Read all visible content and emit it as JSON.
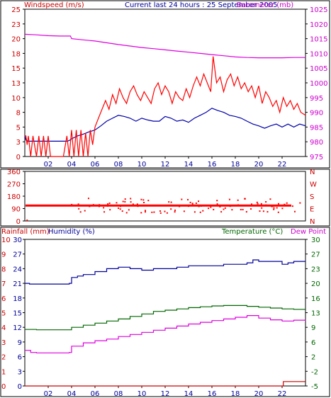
{
  "header": {
    "windspeed_label": "Windspeed (m/s)",
    "title": "Current last 24 hours : 25 September 2005",
    "barometer_label": "Barometer (mb)"
  },
  "bottom_labels": {
    "rainfall": "Rainfall (mm)",
    "humidity": "Humidity (%)",
    "temperature": "Temperature (°C)",
    "dewpoint": "Dew Point"
  },
  "colors": {
    "wind_gust": "#ff0000",
    "wind_avg": "#0000aa",
    "barometer": "#dd00dd",
    "direction": "#ff0000",
    "humidity": "#000099",
    "temperature": "#006600",
    "dewpoint": "#dd00dd",
    "rain": "#cc0000",
    "axis_text_left": "#000099",
    "axis_text_red": "#cc0000",
    "axis_text_green": "#006600",
    "axis_text_magenta": "#cc00cc"
  },
  "chart_data": [
    {
      "type": "line",
      "name": "wind-barometer",
      "x_ticks": [
        "02",
        "04",
        "06",
        "08",
        "10",
        "12",
        "14",
        "16",
        "18",
        "20",
        "22"
      ],
      "x_range_hours": [
        0,
        24
      ],
      "y_left_ticks": [
        "25",
        "23",
        "20",
        "18",
        "15",
        "13",
        "10",
        "8",
        "5",
        "3",
        "0"
      ],
      "y_left_range": [
        0,
        25
      ],
      "y_right_ticks": [
        "1025",
        "1020",
        "1015",
        "1010",
        "1005",
        "1000",
        "995",
        "990",
        "985",
        "980",
        "975"
      ],
      "y_right_range": [
        975,
        1025
      ],
      "series": [
        {
          "axis": "left",
          "x": [
            0,
            0.1,
            0.25,
            0.4,
            1.0,
            1.6,
            2.2,
            2.8,
            3.3,
            3.6,
            3.8,
            4.0,
            4.5,
            5.0,
            5.5,
            6.0,
            6.5,
            7.0,
            7.5,
            8.0,
            8.5,
            9.0,
            9.5,
            10.0,
            10.5,
            11.0,
            11.5,
            12.0,
            12.5,
            13.0,
            13.5,
            14.0,
            14.5,
            15.0,
            15.5,
            16.0,
            16.5,
            17.0,
            17.5,
            18.0,
            18.5,
            19.0,
            19.5,
            20.0,
            20.5,
            21.0,
            21.5,
            22.0,
            22.5,
            23.0,
            23.5,
            24.0
          ],
          "values": [
            3.5,
            2.8,
            2.6,
            2.6,
            2.6,
            2.6,
            2.6,
            2.6,
            2.6,
            2.6,
            2.7,
            3.0,
            3.5,
            3.8,
            4.2,
            4.5,
            5.2,
            6.0,
            6.5,
            7.0,
            6.8,
            6.5,
            6.0,
            6.5,
            6.2,
            6.0,
            6.0,
            6.8,
            6.5,
            6.0,
            6.2,
            5.8,
            6.5,
            7.0,
            7.5,
            8.2,
            7.8,
            7.5,
            7.0,
            6.8,
            6.5,
            6.0,
            5.5,
            5.2,
            4.8,
            5.2,
            5.5,
            5.0,
            5.5,
            5.0,
            5.5,
            5.2
          ]
        },
        {
          "axis": "left",
          "x": [
            0,
            0.1,
            0.2,
            0.3,
            0.5,
            0.7,
            1.0,
            1.2,
            1.4,
            1.6,
            1.8,
            2.0,
            2.2,
            2.6,
            3.0,
            3.3,
            3.6,
            3.8,
            4.0,
            4.2,
            4.4,
            4.6,
            4.8,
            5.0,
            5.2,
            5.4,
            5.6,
            5.8,
            6.0,
            6.3,
            6.6,
            6.9,
            7.2,
            7.5,
            7.8,
            8.1,
            8.4,
            8.7,
            9.0,
            9.3,
            9.6,
            9.9,
            10.2,
            10.5,
            10.8,
            11.1,
            11.4,
            11.7,
            12.0,
            12.3,
            12.6,
            12.9,
            13.2,
            13.5,
            13.8,
            14.1,
            14.4,
            14.7,
            15.0,
            15.3,
            15.6,
            15.9,
            16.1,
            16.4,
            16.7,
            17.0,
            17.3,
            17.6,
            17.9,
            18.2,
            18.5,
            18.8,
            19.1,
            19.4,
            19.7,
            20.0,
            20.3,
            20.6,
            20.9,
            21.2,
            21.5,
            21.8,
            22.1,
            22.4,
            22.7,
            23.0,
            23.3,
            23.6,
            24.0
          ],
          "values": [
            3.5,
            3.5,
            2.0,
            3.5,
            0,
            3.5,
            0,
            3.5,
            0,
            3.5,
            0,
            3.5,
            0,
            0,
            0,
            0,
            3.5,
            0,
            4.5,
            0,
            4.5,
            0,
            4.5,
            0,
            4.0,
            0,
            4.5,
            2.0,
            5.0,
            6.5,
            8.0,
            9.5,
            8.0,
            10.5,
            9.0,
            11.5,
            10.0,
            9.0,
            11.0,
            12.0,
            10.5,
            9.5,
            11.0,
            10.0,
            9.0,
            11.5,
            12.5,
            10.5,
            12.0,
            11.0,
            9.0,
            11.0,
            10.0,
            9.5,
            11.5,
            10.0,
            12.0,
            13.5,
            12.0,
            14.0,
            12.5,
            11.0,
            17.0,
            12.5,
            13.5,
            11.0,
            13.0,
            14.0,
            12.0,
            13.5,
            11.5,
            12.5,
            11.0,
            12.0,
            10.0,
            12.0,
            9.0,
            11.0,
            10.0,
            8.5,
            9.5,
            7.5,
            10.0,
            8.5,
            9.5,
            8.0,
            9.0,
            7.5,
            7.0
          ]
        },
        {
          "axis": "right",
          "x": [
            0,
            1.0,
            2.0,
            3.0,
            3.9,
            4.0,
            5.0,
            6.0,
            7.0,
            8.0,
            9.0,
            10.0,
            11.0,
            12.0,
            13.0,
            14.0,
            15.0,
            16.0,
            17.0,
            18.0,
            19.0,
            20.0,
            21.0,
            22.0,
            23.0,
            24.0
          ],
          "values": [
            1016.5,
            1016.3,
            1016.0,
            1015.9,
            1015.9,
            1015.0,
            1014.6,
            1014.2,
            1013.6,
            1013.0,
            1012.5,
            1012.0,
            1011.6,
            1011.2,
            1010.8,
            1010.4,
            1010.0,
            1009.6,
            1009.2,
            1008.8,
            1008.6,
            1008.5,
            1008.5,
            1008.5,
            1008.6,
            1008.6
          ]
        }
      ]
    },
    {
      "type": "scatter",
      "name": "wind-direction",
      "y_left_ticks": [
        "360",
        "270",
        "180",
        "90",
        "0"
      ],
      "y_left_range": [
        0,
        360
      ],
      "y_right_ticks": [
        "N",
        "W",
        "S",
        "E",
        "N"
      ],
      "x_range_hours": [
        0,
        24
      ],
      "baseline_bearing": 112
    },
    {
      "type": "line",
      "name": "temperature-humidity",
      "x_ticks": [
        "02",
        "04",
        "06",
        "08",
        "10",
        "12",
        "14",
        "16",
        "18",
        "20",
        "22"
      ],
      "x_range_hours": [
        0,
        24
      ],
      "y_rain_ticks": [
        "10",
        "9",
        "8",
        "7",
        "6",
        "5",
        "4",
        "3",
        "2",
        "1",
        "0"
      ],
      "y_humidity_ticks": [
        "30",
        "27",
        "24",
        "21",
        "18",
        "15",
        "12",
        "9",
        "6",
        "3",
        "0"
      ],
      "y_temp_ticks": [
        "30",
        "27",
        "23",
        "20",
        "16",
        "13",
        "9",
        "6",
        "2",
        "-2",
        "-5"
      ],
      "humidity_range": [
        0,
        100
      ],
      "temperature_range": [
        -5,
        30
      ],
      "series": [
        {
          "axis": "humidity",
          "x": [
            0,
            0.4,
            1.0,
            2.0,
            3.0,
            3.8,
            4.0,
            4.5,
            5.0,
            6.0,
            7.0,
            8.0,
            9.0,
            10.0,
            11.0,
            12.0,
            13.0,
            14.0,
            15.0,
            16.0,
            17.0,
            18.0,
            19.0,
            19.5,
            20.0,
            21.0,
            22.0,
            22.5,
            23.0,
            24.0
          ],
          "values": [
            70,
            69.5,
            69.5,
            69.5,
            69.5,
            70,
            74,
            75,
            76,
            78,
            80,
            81,
            80,
            79,
            80,
            80,
            81,
            82,
            82,
            82,
            83,
            83,
            84,
            86,
            85,
            85,
            83,
            84,
            85,
            85
          ]
        },
        {
          "axis": "temp",
          "x": [
            0,
            1.0,
            2.0,
            3.0,
            3.8,
            4.0,
            5.0,
            6.0,
            7.0,
            8.0,
            9.0,
            10.0,
            11.0,
            12.0,
            13.0,
            14.0,
            15.0,
            16.0,
            17.0,
            18.0,
            19.0,
            20.0,
            21.0,
            22.0,
            23.0,
            24.0
          ],
          "values": [
            8.5,
            8.4,
            8.4,
            8.4,
            8.4,
            9.0,
            9.5,
            10.0,
            10.5,
            11.0,
            11.6,
            12.2,
            12.8,
            13.1,
            13.4,
            13.7,
            13.9,
            14.1,
            14.2,
            14.2,
            14.0,
            13.8,
            13.6,
            13.4,
            13.3,
            13.3
          ]
        },
        {
          "axis": "temp",
          "x": [
            0,
            0.5,
            1.0,
            2.0,
            3.0,
            3.8,
            4.0,
            5.0,
            6.0,
            7.0,
            8.0,
            9.0,
            10.0,
            11.0,
            12.0,
            13.0,
            14.0,
            15.0,
            16.0,
            17.0,
            18.0,
            19.0,
            20.0,
            21.0,
            22.0,
            23.0,
            24.0
          ],
          "values": [
            3.5,
            3.0,
            2.9,
            2.9,
            2.9,
            3.0,
            4.5,
            5.3,
            5.8,
            6.2,
            6.8,
            7.3,
            7.8,
            8.3,
            8.8,
            9.3,
            9.8,
            10.2,
            10.6,
            11.0,
            11.4,
            11.8,
            11.2,
            10.8,
            10.5,
            10.7,
            10.8
          ]
        },
        {
          "axis": "rain",
          "x": [
            0,
            22.0,
            22.1,
            24.0
          ],
          "values": [
            0,
            0,
            0.3,
            0.3
          ]
        }
      ]
    }
  ]
}
